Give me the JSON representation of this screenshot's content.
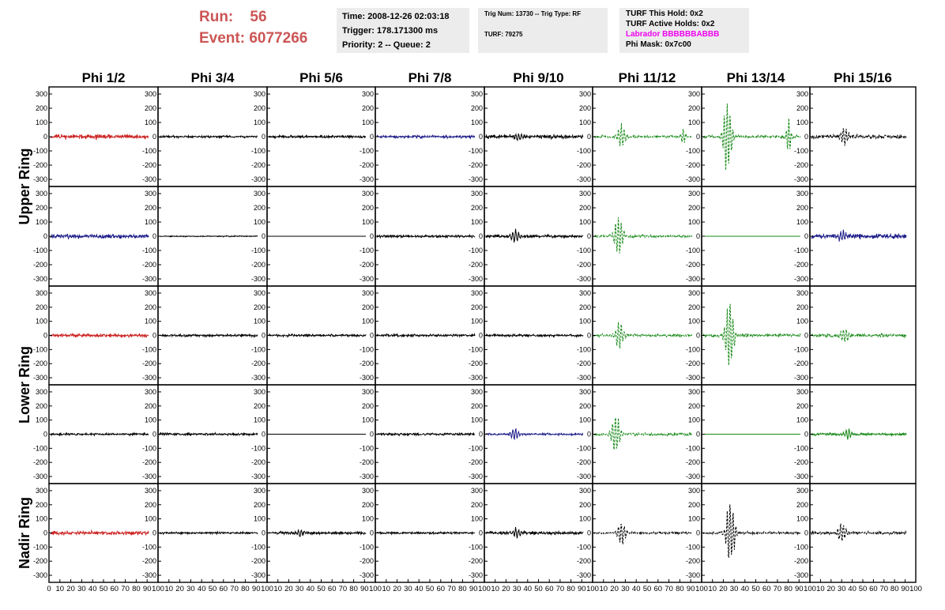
{
  "header": {
    "run_label": "Run:",
    "run_value": "56",
    "event_label": "Event:",
    "event_value": "6077266"
  },
  "time_box": {
    "time": "Time: 2008-12-26 02:03:18",
    "trigger": "Trigger: 178.171300 ms",
    "priority": "Priority: 2 -- Queue: 2"
  },
  "trig_box": {
    "trig": "Trig Num: 13730 -- Trig Type: RF",
    "turf": "TURF: 79275"
  },
  "turf_box": {
    "this_hold": "TURF This Hold: 0x2",
    "active_holds": "TURF Active Holds: 0x2",
    "labrador": "Labrador BBBBBBABBB",
    "phi_mask": "Phi Mask: 0x7c00"
  },
  "colors": {
    "run_text": "#cc5555",
    "labrador": "#ee00ee",
    "info_box_bg": "#ececec"
  },
  "chart_data": {
    "type": "line",
    "columns": [
      "Phi 1/2",
      "Phi 3/4",
      "Phi 5/6",
      "Phi 7/8",
      "Phi 9/10",
      "Phi 11/12",
      "Phi 13/14",
      "Phi 15/16"
    ],
    "rows": [
      "Upper Ring",
      "Upper Ring",
      "Lower Ring",
      "Lower Ring",
      "Nadir Ring"
    ],
    "ring_labels": [
      "Upper Ring",
      "Lower Ring",
      "Nadir Ring"
    ],
    "y_ticks": [
      300,
      200,
      100,
      0,
      -100,
      -200,
      -300
    ],
    "ylim": [
      -350,
      350
    ],
    "xlim": [
      0,
      100
    ],
    "x_tick_label_strip": [
      "0 10 20 30 40 50 60 70 80 90 100",
      "10 20 30 40 50 60 70 80 90 100",
      "10 20 30 40 50 60 70 80 90 100",
      "10 20 30 40 50 60 70 80 90 100",
      "10 20 30 40 50 60 70 80 90 100",
      "10 20 30 40 50 60 70 80 90 100",
      "10 20 30 40 50 60 70 80 90 100",
      "10 20 30 40 50 60 70 80 90 100"
    ],
    "series_colors": {
      "red": "#cc2222",
      "black": "#000000",
      "blue": "#1a1a88",
      "green": "#1a8a1a"
    },
    "panels": [
      [
        {
          "color": "red",
          "amp": 22,
          "peak": 0,
          "center": 0,
          "dashed": false
        },
        {
          "color": "black",
          "amp": 10,
          "peak": 0,
          "center": 0,
          "dashed": false
        },
        {
          "color": "black",
          "amp": 12,
          "peak": 0,
          "center": 0,
          "dashed": false
        },
        {
          "color": "blue",
          "amp": 12,
          "peak": 0,
          "center": 0,
          "dashed": false
        },
        {
          "color": "black",
          "amp": 18,
          "peak": 35,
          "center": 33,
          "dashed": false
        },
        {
          "color": "green",
          "amp": 12,
          "peak": 95,
          "center": 28,
          "dashed": true,
          "peak2": 60,
          "center2": 91
        },
        {
          "color": "green",
          "amp": 14,
          "peak": 300,
          "center": 25,
          "dashed": true,
          "peak2": 120,
          "center2": 88
        },
        {
          "color": "black",
          "amp": 20,
          "peak": 65,
          "center": 35,
          "dashed": true
        }
      ],
      [
        {
          "color": "blue",
          "amp": 20,
          "peak": 0,
          "center": 0,
          "dashed": false
        },
        {
          "color": "black",
          "amp": 5,
          "peak": 0,
          "center": 0,
          "dashed": false
        },
        {
          "color": "black",
          "amp": 0,
          "peak": 0,
          "center": 0,
          "dashed": false
        },
        {
          "color": "black",
          "amp": 12,
          "peak": 0,
          "center": 0,
          "dashed": false
        },
        {
          "color": "black",
          "amp": 14,
          "peak": 55,
          "center": 30,
          "dashed": false
        },
        {
          "color": "green",
          "amp": 14,
          "peak": 155,
          "center": 25,
          "dashed": true
        },
        {
          "color": "green",
          "amp": 0,
          "peak": 0,
          "center": 0,
          "dashed": false
        },
        {
          "color": "blue",
          "amp": 24,
          "peak": 40,
          "center": 32,
          "dashed": false
        }
      ],
      [
        {
          "color": "red",
          "amp": 18,
          "peak": 0,
          "center": 0,
          "dashed": false
        },
        {
          "color": "black",
          "amp": 12,
          "peak": 0,
          "center": 0,
          "dashed": false
        },
        {
          "color": "black",
          "amp": 12,
          "peak": 0,
          "center": 0,
          "dashed": false
        },
        {
          "color": "black",
          "amp": 12,
          "peak": 0,
          "center": 0,
          "dashed": false
        },
        {
          "color": "black",
          "amp": 12,
          "peak": 0,
          "center": 0,
          "dashed": false
        },
        {
          "color": "green",
          "amp": 14,
          "peak": 110,
          "center": 26,
          "dashed": true
        },
        {
          "color": "green",
          "amp": 16,
          "peak": 290,
          "center": 27,
          "dashed": true
        },
        {
          "color": "green",
          "amp": 16,
          "peak": 60,
          "center": 35,
          "dashed": true
        }
      ],
      [
        {
          "color": "black",
          "amp": 10,
          "peak": 0,
          "center": 0,
          "dashed": false
        },
        {
          "color": "black",
          "amp": 12,
          "peak": 0,
          "center": 0,
          "dashed": false
        },
        {
          "color": "black",
          "amp": 0,
          "peak": 0,
          "center": 0,
          "dashed": false
        },
        {
          "color": "black",
          "amp": 12,
          "peak": 0,
          "center": 0,
          "dashed": false
        },
        {
          "color": "blue",
          "amp": 10,
          "peak": 45,
          "center": 30,
          "dashed": false
        },
        {
          "color": "green",
          "amp": 14,
          "peak": 165,
          "center": 22,
          "dashed": true
        },
        {
          "color": "green",
          "amp": 0,
          "peak": 0,
          "center": 0,
          "dashed": false
        },
        {
          "color": "green",
          "amp": 12,
          "peak": 40,
          "center": 38,
          "dashed": false
        }
      ],
      [
        {
          "color": "red",
          "amp": 18,
          "peak": 0,
          "center": 0,
          "dashed": false
        },
        {
          "color": "black",
          "amp": 10,
          "peak": 0,
          "center": 0,
          "dashed": false
        },
        {
          "color": "black",
          "amp": 14,
          "peak": 25,
          "center": 32,
          "dashed": false
        },
        {
          "color": "black",
          "amp": 10,
          "peak": 0,
          "center": 0,
          "dashed": false
        },
        {
          "color": "black",
          "amp": 16,
          "peak": 40,
          "center": 32,
          "dashed": false
        },
        {
          "color": "black",
          "amp": 10,
          "peak": 90,
          "center": 28,
          "dashed": true
        },
        {
          "color": "black",
          "amp": 12,
          "peak": 260,
          "center": 28,
          "dashed": true
        },
        {
          "color": "black",
          "amp": 14,
          "peak": 85,
          "center": 32,
          "dashed": true
        }
      ]
    ]
  }
}
